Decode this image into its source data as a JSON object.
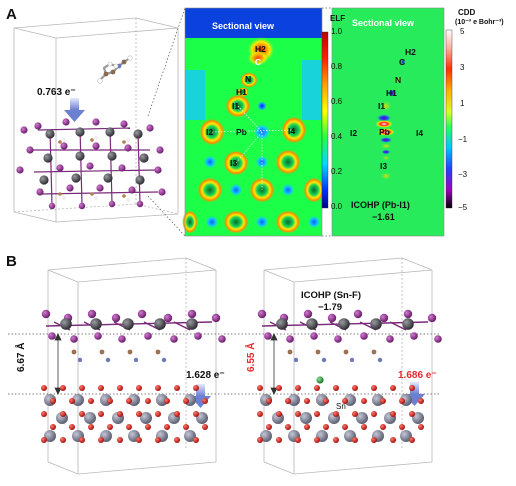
{
  "panels": {
    "a": {
      "letter": "A",
      "charge_transfer": "0.763 e⁻",
      "elf_map": {
        "title": "Sectional view",
        "colorbar_title": "ELF",
        "ticks": [
          "1.0",
          "0.8",
          "0.6",
          "0.4",
          "0.2",
          "0.0"
        ],
        "labels": {
          "h2": "H2",
          "c": "C",
          "n": "N",
          "h1": "H1",
          "i1": "I1",
          "i2": "I2",
          "pb": "Pb",
          "i4": "I4",
          "i3": "I3"
        }
      },
      "cdd_map": {
        "title": "Sectional view",
        "colorbar_title": "CDD",
        "colorbar_unit": "(10⁻³ e Bohr⁻³)",
        "ticks": [
          "5",
          "3",
          "1",
          "−1",
          "−3",
          "−5"
        ],
        "labels": {
          "h2": "H2",
          "c": "C",
          "n": "N",
          "h1": "H1",
          "i1": "I1",
          "i2": "I2",
          "pb": "Pb",
          "i4": "I4",
          "i3": "I3"
        },
        "icohp_label": "ICOHP (Pb-I1)",
        "icohp_value": "−1.61"
      }
    },
    "b": {
      "letter": "B",
      "left": {
        "distance": "6.67 Å",
        "charge_transfer": "1.628 e⁻"
      },
      "right": {
        "distance": "6.55 Å",
        "charge_transfer": "1.686 e⁻",
        "icohp_label": "ICOHP (Sn-F)",
        "icohp_value": "−1.79",
        "sn_label": "Sn"
      }
    }
  },
  "colors": {
    "iodine": "#8e2d8e",
    "lead": "#4a4a4f",
    "oxygen": "#d42020",
    "tin": "#8a8d9e",
    "fluorine": "#2a9a3a",
    "highlight": "#e8282d",
    "arrow": "#7b8fd6"
  }
}
